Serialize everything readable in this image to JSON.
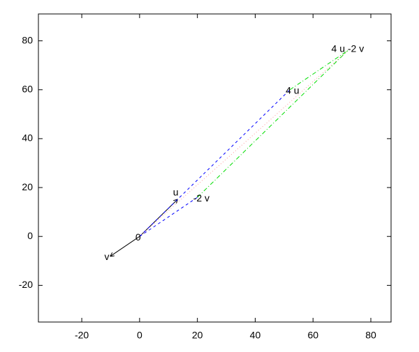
{
  "chart_data": {
    "type": "vector",
    "xlim": [
      -35,
      87
    ],
    "ylim": [
      -35,
      91
    ],
    "xticks": [
      -20,
      0,
      20,
      40,
      60,
      80
    ],
    "yticks": [
      -20,
      0,
      20,
      40,
      60,
      80
    ],
    "points": [
      {
        "label": "0",
        "x": 0,
        "y": 0
      },
      {
        "label": "u",
        "x": 13,
        "y": 15
      },
      {
        "label": "v",
        "x": -10,
        "y": -8
      },
      {
        "label": "4 u",
        "x": 52,
        "y": 60
      },
      {
        "label": "-2 v",
        "x": 20,
        "y": 16
      },
      {
        "label": "4 u -2 v",
        "x": 72,
        "y": 76
      }
    ],
    "segments": [
      {
        "x1": 0,
        "y1": 0,
        "x2": 13,
        "y2": 15,
        "color": "#000000",
        "style": "solid",
        "arrow": true
      },
      {
        "x1": 0,
        "y1": 0,
        "x2": -10,
        "y2": -8,
        "color": "#000000",
        "style": "solid",
        "arrow": true
      },
      {
        "x1": 0,
        "y1": 0,
        "x2": 52,
        "y2": 60,
        "color": "#0000ff",
        "style": "dashed"
      },
      {
        "x1": 0,
        "y1": 0,
        "x2": 20,
        "y2": 16,
        "color": "#0000ff",
        "style": "dashed"
      },
      {
        "x1": 20,
        "y1": 16,
        "x2": 72,
        "y2": 76,
        "color": "#00dd00",
        "style": "dashdot"
      },
      {
        "x1": 52,
        "y1": 60,
        "x2": 72,
        "y2": 76,
        "color": "#00dd00",
        "style": "dashdot"
      },
      {
        "x1": 0,
        "y1": 0,
        "x2": 72,
        "y2": 76,
        "color": "#ff9999",
        "style": "dotted"
      }
    ]
  }
}
